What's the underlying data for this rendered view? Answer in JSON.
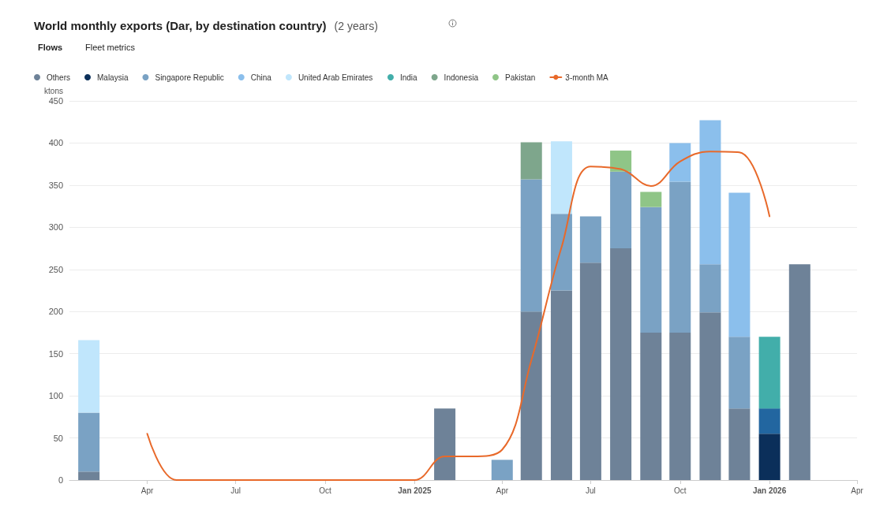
{
  "chart_data": {
    "type": "bar",
    "title": "World monthly exports (Dar, by destination country)",
    "subtitle": "(2 years)",
    "ylabel": "ktons",
    "annotations": [
      "Flows",
      "Fleet metrics"
    ],
    "x": [
      "2024-02",
      "2024-03",
      "2024-04",
      "2024-05",
      "2024-06",
      "2024-07",
      "2024-08",
      "2024-09",
      "2024-10",
      "2024-11",
      "2024-12",
      "2025-01",
      "2025-02",
      "2025-03",
      "2025-04",
      "2025-05",
      "2025-06",
      "2025-07",
      "2025-08",
      "2025-09",
      "2025-10",
      "2025-11",
      "2025-12",
      "2026-01",
      "2026-02"
    ],
    "stacked": true,
    "series": [
      {
        "name": "Others",
        "color": "#6e8298",
        "values": [
          10,
          null,
          null,
          null,
          null,
          null,
          null,
          null,
          null,
          null,
          null,
          null,
          85,
          null,
          null,
          200,
          225,
          258,
          275,
          175,
          175,
          199,
          85,
          null,
          256
        ]
      },
      {
        "name": "Malaysia",
        "color": "#0b2f5a",
        "values": [
          null,
          null,
          null,
          null,
          null,
          null,
          null,
          null,
          null,
          null,
          null,
          null,
          null,
          null,
          null,
          null,
          null,
          null,
          null,
          null,
          null,
          null,
          null,
          55,
          null
        ]
      },
      {
        "name": "Singapore Republic",
        "color": "#7aa2c4",
        "colors": [
          "#7aa2c4",
          null,
          null,
          null,
          null,
          null,
          null,
          null,
          null,
          null,
          null,
          null,
          null,
          null,
          "#7aa2c4",
          "#7aa2c4",
          "#7aa2c4",
          "#7aa2c4",
          "#7aa2c4",
          "#7aa2c4",
          "#7aa2c4",
          "#7aa2c4",
          "#7aa2c4",
          "#2266a0",
          null
        ],
        "values": [
          70,
          null,
          null,
          null,
          null,
          null,
          null,
          null,
          null,
          null,
          null,
          null,
          null,
          null,
          24,
          157,
          91,
          55,
          91,
          149,
          179,
          57,
          85,
          30,
          null
        ]
      },
      {
        "name": "China",
        "color": "#8bbfec",
        "values": [
          null,
          null,
          null,
          null,
          null,
          null,
          null,
          null,
          null,
          null,
          null,
          null,
          null,
          null,
          null,
          null,
          null,
          null,
          null,
          null,
          46,
          171,
          171,
          null,
          null
        ]
      },
      {
        "name": "United Arab Emirates",
        "color": "#c0e6fc",
        "values": [
          86,
          null,
          null,
          null,
          null,
          null,
          null,
          null,
          null,
          null,
          null,
          null,
          null,
          null,
          null,
          null,
          86,
          null,
          null,
          null,
          null,
          null,
          null,
          null,
          null
        ]
      },
      {
        "name": "India",
        "color": "#42aeaa",
        "values": [
          null,
          null,
          null,
          null,
          null,
          null,
          null,
          null,
          null,
          null,
          null,
          null,
          null,
          null,
          null,
          null,
          null,
          null,
          null,
          null,
          null,
          null,
          null,
          85,
          null
        ]
      },
      {
        "name": "Indonesia",
        "color": "#7ea68c",
        "values": [
          null,
          null,
          null,
          null,
          null,
          null,
          null,
          null,
          null,
          null,
          null,
          null,
          null,
          null,
          null,
          44,
          null,
          null,
          null,
          null,
          null,
          null,
          null,
          null,
          null
        ]
      },
      {
        "name": "Pakistan",
        "color": "#8fc587",
        "values": [
          null,
          null,
          null,
          null,
          null,
          null,
          null,
          null,
          null,
          null,
          null,
          null,
          null,
          null,
          null,
          null,
          null,
          null,
          25,
          18,
          null,
          null,
          null,
          null,
          null
        ]
      },
      {
        "name": "3-month MA",
        "type": "line",
        "color": "#e8692a",
        "values": [
          null,
          null,
          55,
          0,
          0,
          0,
          0,
          0,
          0,
          0,
          0,
          0,
          28,
          28,
          36,
          142,
          276,
          372,
          369,
          349,
          378,
          390,
          389,
          313,
          null
        ]
      }
    ],
    "xlim": [
      "2024-01-12",
      "2026-04-01"
    ],
    "xticks": [
      {
        "value": "2024-04",
        "label": "Apr"
      },
      {
        "value": "2024-07",
        "label": "Jul"
      },
      {
        "value": "2024-10",
        "label": "Oct"
      },
      {
        "value": "2025-01",
        "label": "Jan 2025"
      },
      {
        "value": "2025-04",
        "label": "Apr"
      },
      {
        "value": "2025-07",
        "label": "Jul"
      },
      {
        "value": "2025-10",
        "label": "Oct"
      },
      {
        "value": "2026-01",
        "label": "Jan 2026"
      },
      {
        "value": "2026-04",
        "label": "Apr"
      }
    ],
    "ylim": [
      0,
      450
    ],
    "yticks": [
      0,
      50,
      100,
      150,
      200,
      250,
      300,
      350,
      400,
      450
    ],
    "grid": "y",
    "legend": "top left",
    "line_style": "solid",
    "marker": "none"
  }
}
